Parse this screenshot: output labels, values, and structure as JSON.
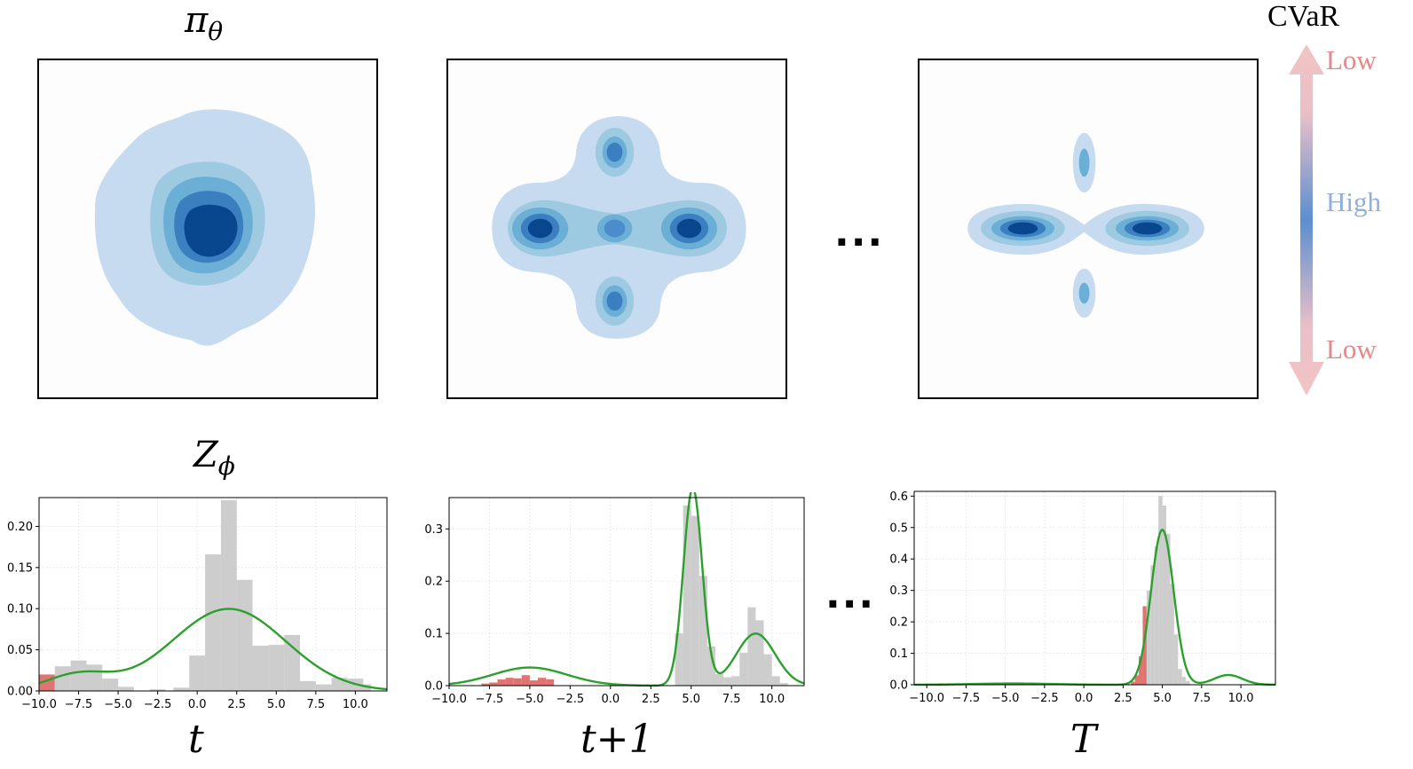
{
  "labels": {
    "policy": "π",
    "policy_sub": "θ",
    "critic": "Z",
    "critic_sub": "ϕ",
    "x1": "t",
    "x2": "t+1",
    "x3": "T",
    "ellipsis": "···"
  },
  "legend": {
    "title": "CVaR",
    "top": "Low",
    "middle": "High",
    "bottom": "Low",
    "colors": {
      "low": "#f0c4c4",
      "high": "#4a7fc8"
    }
  },
  "colors": {
    "contour_levels": [
      "#c6dbef",
      "#9ecae1",
      "#6baed6",
      "#3b7fc1",
      "#08478e"
    ],
    "hist_bar": "#c8c8c8",
    "hist_tail": "#e06c6c",
    "density_line": "#2ca02c"
  },
  "chart_data": [
    {
      "type": "bar",
      "title": "",
      "xlabel": "t",
      "ylabel": "",
      "xlim": [
        -10,
        12
      ],
      "ylim": [
        0,
        0.235
      ],
      "xticks": [
        "−10.0",
        "−7.5",
        "−5.0",
        "−2.5",
        "0.0",
        "2.5",
        "5.0",
        "7.5",
        "10.0"
      ],
      "xtick_values": [
        -10,
        -7.5,
        -5,
        -2.5,
        0,
        2.5,
        5,
        7.5,
        10
      ],
      "yticks": [
        "0.00",
        "0.05",
        "0.10",
        "0.15",
        "0.20"
      ],
      "ytick_values": [
        0,
        0.05,
        0.1,
        0.15,
        0.2
      ],
      "tail_cutoff": -9.0,
      "bins": [
        [
          -10.0,
          -9.0,
          0.02
        ],
        [
          -9.0,
          -8.0,
          0.03
        ],
        [
          -8.0,
          -7.0,
          0.037
        ],
        [
          -7.0,
          -6.0,
          0.032
        ],
        [
          -6.0,
          -5.0,
          0.015
        ],
        [
          -5.0,
          -4.0,
          0.005
        ],
        [
          -3.0,
          -2.0,
          0.002
        ],
        [
          -1.5,
          -0.5,
          0.004
        ],
        [
          -0.5,
          0.5,
          0.043
        ],
        [
          0.5,
          1.5,
          0.166
        ],
        [
          1.5,
          2.5,
          0.232
        ],
        [
          2.5,
          3.5,
          0.135
        ],
        [
          3.5,
          4.5,
          0.055
        ],
        [
          4.5,
          5.5,
          0.056
        ],
        [
          5.5,
          6.5,
          0.068
        ],
        [
          6.5,
          7.5,
          0.012
        ],
        [
          7.5,
          8.5,
          0.008
        ],
        [
          8.5,
          9.5,
          0.016
        ],
        [
          9.5,
          10.5,
          0.015
        ],
        [
          10.5,
          11.0,
          0.008
        ]
      ],
      "density": {
        "name": "",
        "components": [
          [
            0.1,
            -7.5,
            2.0
          ],
          [
            0.9,
            2.0,
            3.6
          ]
        ]
      }
    },
    {
      "type": "bar",
      "title": "",
      "xlabel": "t+1",
      "ylabel": "",
      "xlim": [
        -10,
        12
      ],
      "ylim": [
        0,
        0.36
      ],
      "xticks": [
        "−10.0",
        "−7.5",
        "−5.0",
        "−2.5",
        "0.0",
        "2.5",
        "5.0",
        "7.5",
        "10.0"
      ],
      "xtick_values": [
        -10,
        -7.5,
        -5,
        -2.5,
        0,
        2.5,
        5,
        7.5,
        10
      ],
      "yticks": [
        "0.0",
        "0.1",
        "0.2",
        "0.3"
      ],
      "ytick_values": [
        0,
        0.1,
        0.2,
        0.3
      ],
      "tail_cutoff": -3.5,
      "bins": [
        [
          -8.0,
          -7.5,
          0.004
        ],
        [
          -7.5,
          -7.0,
          0.006
        ],
        [
          -7.0,
          -6.5,
          0.012
        ],
        [
          -6.5,
          -6.0,
          0.015
        ],
        [
          -6.0,
          -5.5,
          0.014
        ],
        [
          -5.5,
          -5.0,
          0.02
        ],
        [
          -5.0,
          -4.5,
          0.01
        ],
        [
          -4.5,
          -4.0,
          0.015
        ],
        [
          -4.0,
          -3.5,
          0.012
        ],
        [
          4.0,
          4.5,
          0.1
        ],
        [
          4.5,
          5.0,
          0.345
        ],
        [
          5.0,
          5.5,
          0.325
        ],
        [
          5.5,
          6.0,
          0.21
        ],
        [
          6.0,
          6.5,
          0.075
        ],
        [
          6.5,
          7.0,
          0.022
        ],
        [
          7.0,
          7.5,
          0.016
        ],
        [
          7.5,
          8.0,
          0.018
        ],
        [
          8.0,
          8.5,
          0.063
        ],
        [
          8.5,
          9.0,
          0.15
        ],
        [
          9.0,
          9.5,
          0.125
        ],
        [
          9.5,
          10.0,
          0.06
        ],
        [
          10.0,
          10.5,
          0.018
        ],
        [
          10.5,
          11.0,
          0.005
        ]
      ],
      "density": {
        "name": "",
        "components": [
          [
            0.2,
            -5.0,
            2.3
          ],
          [
            0.55,
            5.1,
            0.58
          ],
          [
            0.3,
            9.0,
            1.2
          ]
        ]
      }
    },
    {
      "type": "bar",
      "title": "",
      "xlabel": "T",
      "ylabel": "",
      "xlim": [
        -10.8,
        12.2
      ],
      "ylim": [
        0,
        0.615
      ],
      "xticks": [
        "−10.0",
        "−7.5",
        "−5.0",
        "−2.5",
        "0.0",
        "2.5",
        "5.0",
        "7.5",
        "10.0"
      ],
      "xtick_values": [
        -10,
        -7.5,
        -5,
        -2.5,
        0,
        2.5,
        5,
        7.5,
        10
      ],
      "yticks": [
        "0.0",
        "0.1",
        "0.2",
        "0.3",
        "0.4",
        "0.5",
        "0.6"
      ],
      "ytick_values": [
        0,
        0.1,
        0.2,
        0.3,
        0.4,
        0.5,
        0.6
      ],
      "tail_cutoff": 4.0,
      "bins": [
        [
          3.0,
          3.25,
          0.01
        ],
        [
          3.25,
          3.5,
          0.03
        ],
        [
          3.5,
          3.75,
          0.09
        ],
        [
          3.75,
          4.0,
          0.25
        ],
        [
          4.0,
          4.25,
          0.3
        ],
        [
          4.25,
          4.5,
          0.38
        ],
        [
          4.5,
          4.75,
          0.44
        ],
        [
          4.75,
          5.0,
          0.6
        ],
        [
          5.0,
          5.25,
          0.57
        ],
        [
          5.25,
          5.5,
          0.48
        ],
        [
          5.5,
          5.75,
          0.32
        ],
        [
          5.75,
          6.0,
          0.16
        ],
        [
          6.0,
          6.25,
          0.05
        ],
        [
          6.25,
          6.5,
          0.025
        ],
        [
          6.5,
          6.75,
          0.012
        ]
      ],
      "density": {
        "name": "",
        "components": [
          [
            0.025,
            -4.5,
            2.5
          ],
          [
            0.89,
            5.0,
            0.72
          ],
          [
            0.07,
            9.2,
            0.9
          ]
        ]
      }
    }
  ]
}
